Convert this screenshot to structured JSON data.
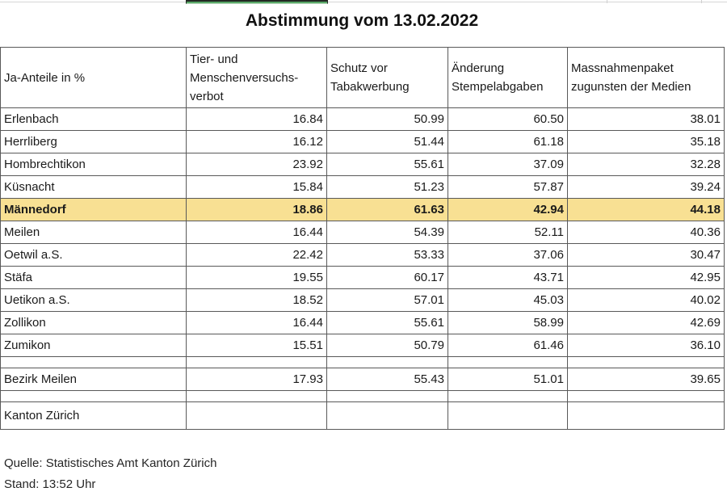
{
  "title": "Abstimmung vom 13.02.2022",
  "table": {
    "columns": [
      "Ja-Anteile in %",
      "Tier- und Menschenversuchs-verbot",
      "Schutz vor Tabakwerbung",
      "Änderung Stempelabgaben",
      "Massnahmenpaket zugunsten der Medien"
    ],
    "rows": [
      {
        "name": "Erlenbach",
        "values": [
          "16.84",
          "50.99",
          "60.50",
          "38.01"
        ]
      },
      {
        "name": "Herrliberg",
        "values": [
          "16.12",
          "51.44",
          "61.18",
          "35.18"
        ]
      },
      {
        "name": "Hombrechtikon",
        "values": [
          "23.92",
          "55.61",
          "37.09",
          "32.28"
        ]
      },
      {
        "name": "Küsnacht",
        "values": [
          "15.84",
          "51.23",
          "57.87",
          "39.24"
        ]
      },
      {
        "name": "Männedorf",
        "values": [
          "18.86",
          "61.63",
          "42.94",
          "44.18"
        ],
        "highlighted": true
      },
      {
        "name": "Meilen",
        "values": [
          "16.44",
          "54.39",
          "52.11",
          "40.36"
        ]
      },
      {
        "name": "Oetwil a.S.",
        "values": [
          "22.42",
          "53.33",
          "37.06",
          "30.47"
        ]
      },
      {
        "name": "Stäfa",
        "values": [
          "19.55",
          "60.17",
          "43.71",
          "42.95"
        ]
      },
      {
        "name": "Uetikon a.S.",
        "values": [
          "18.52",
          "57.01",
          "45.03",
          "40.02"
        ]
      },
      {
        "name": "Zollikon",
        "values": [
          "16.44",
          "55.61",
          "58.99",
          "42.69"
        ]
      },
      {
        "name": "Zumikon",
        "values": [
          "15.51",
          "50.79",
          "61.46",
          "36.10"
        ]
      },
      {
        "name": "",
        "values": [
          "",
          "",
          "",
          ""
        ],
        "spacer": true
      },
      {
        "name": "Bezirk Meilen",
        "values": [
          "17.93",
          "55.43",
          "51.01",
          "39.65"
        ]
      },
      {
        "name": "",
        "values": [
          "",
          "",
          "",
          ""
        ],
        "spacer": true
      },
      {
        "name": "Kanton Zürich",
        "values": [
          "",
          "",
          "",
          ""
        ],
        "tall": true
      }
    ]
  },
  "footer": {
    "source": "Quelle: Statistisches Amt Kanton Zürich",
    "stand": "Stand: 13:52 Uhr"
  },
  "colors": {
    "highlight": "#f8e093",
    "border": "#595959",
    "green_bar": "#58a868"
  },
  "decorations": {
    "green_bar_note": "bottom sliver of green chart bar cut off at top edge"
  }
}
